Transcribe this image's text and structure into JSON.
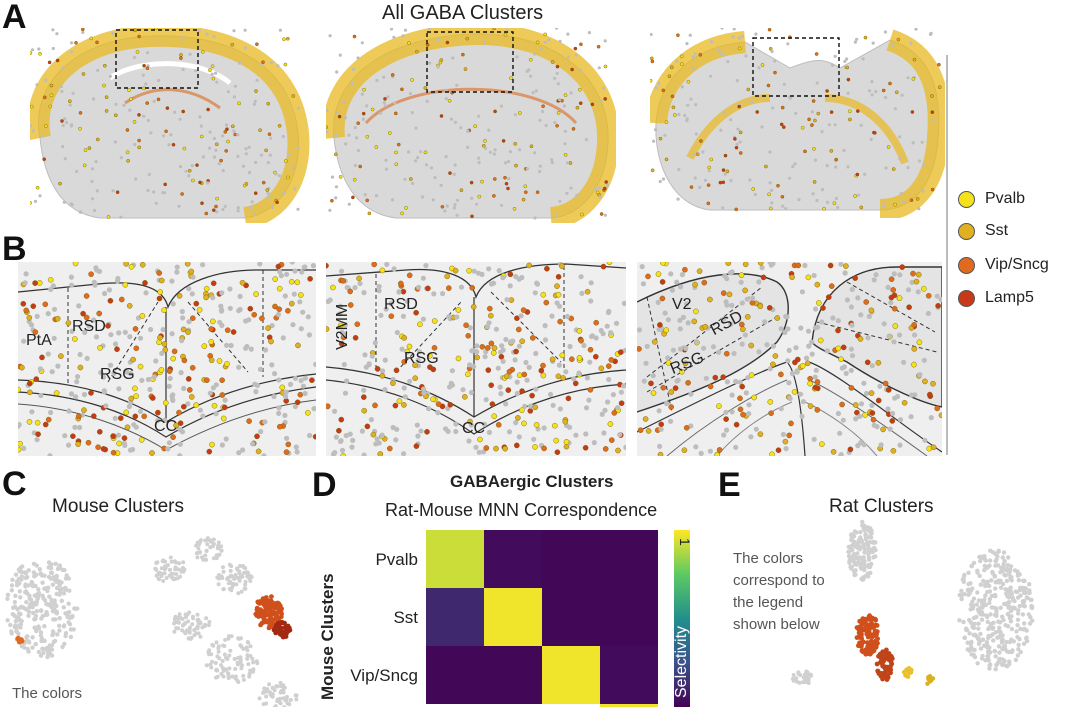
{
  "panels": {
    "a": {
      "letter": "A",
      "title": "All GABA Clusters"
    },
    "b": {
      "letter": "B",
      "section1": [
        "PtA",
        "RSD",
        "RSG",
        "CC"
      ],
      "section2": [
        "V2MM",
        "RSD",
        "RSG",
        "CC"
      ],
      "section3": [
        "V2",
        "RSD",
        "RSG"
      ]
    },
    "c": {
      "letter": "C",
      "title": "Mouse Clusters",
      "note": "The colors"
    },
    "d": {
      "letter": "D",
      "title": "GABAergic Clusters",
      "subtitle": "Rat-Mouse MNN Correspondence"
    },
    "e": {
      "letter": "E",
      "title": "Rat Clusters",
      "note": [
        "The colors",
        "correspond to",
        "the legend",
        "shown below"
      ]
    }
  },
  "legend": [
    {
      "label": "Pvalb",
      "color": "#f5e21a"
    },
    {
      "label": "Sst",
      "color": "#e0b020"
    },
    {
      "label": "Vip/Sncg",
      "color": "#e06a1e"
    },
    {
      "label": "Lamp5",
      "color": "#c73a18"
    }
  ],
  "chart_data": {
    "type": "heatmap",
    "title": "GABAergic Clusters",
    "subtitle": "Rat-Mouse MNN Correspondence",
    "ylabel": "Mouse Clusters",
    "rows": [
      "Pvalb",
      "Sst",
      "Vip/Sncg"
    ],
    "colorbar": {
      "label": "Selectivity",
      "max_tick": "1",
      "range": [
        0,
        1
      ]
    },
    "values": [
      [
        0.92,
        0.03,
        0.02,
        0.02
      ],
      [
        0.12,
        0.98,
        0.02,
        0.02
      ],
      [
        0.02,
        0.02,
        0.98,
        0.03
      ]
    ]
  }
}
